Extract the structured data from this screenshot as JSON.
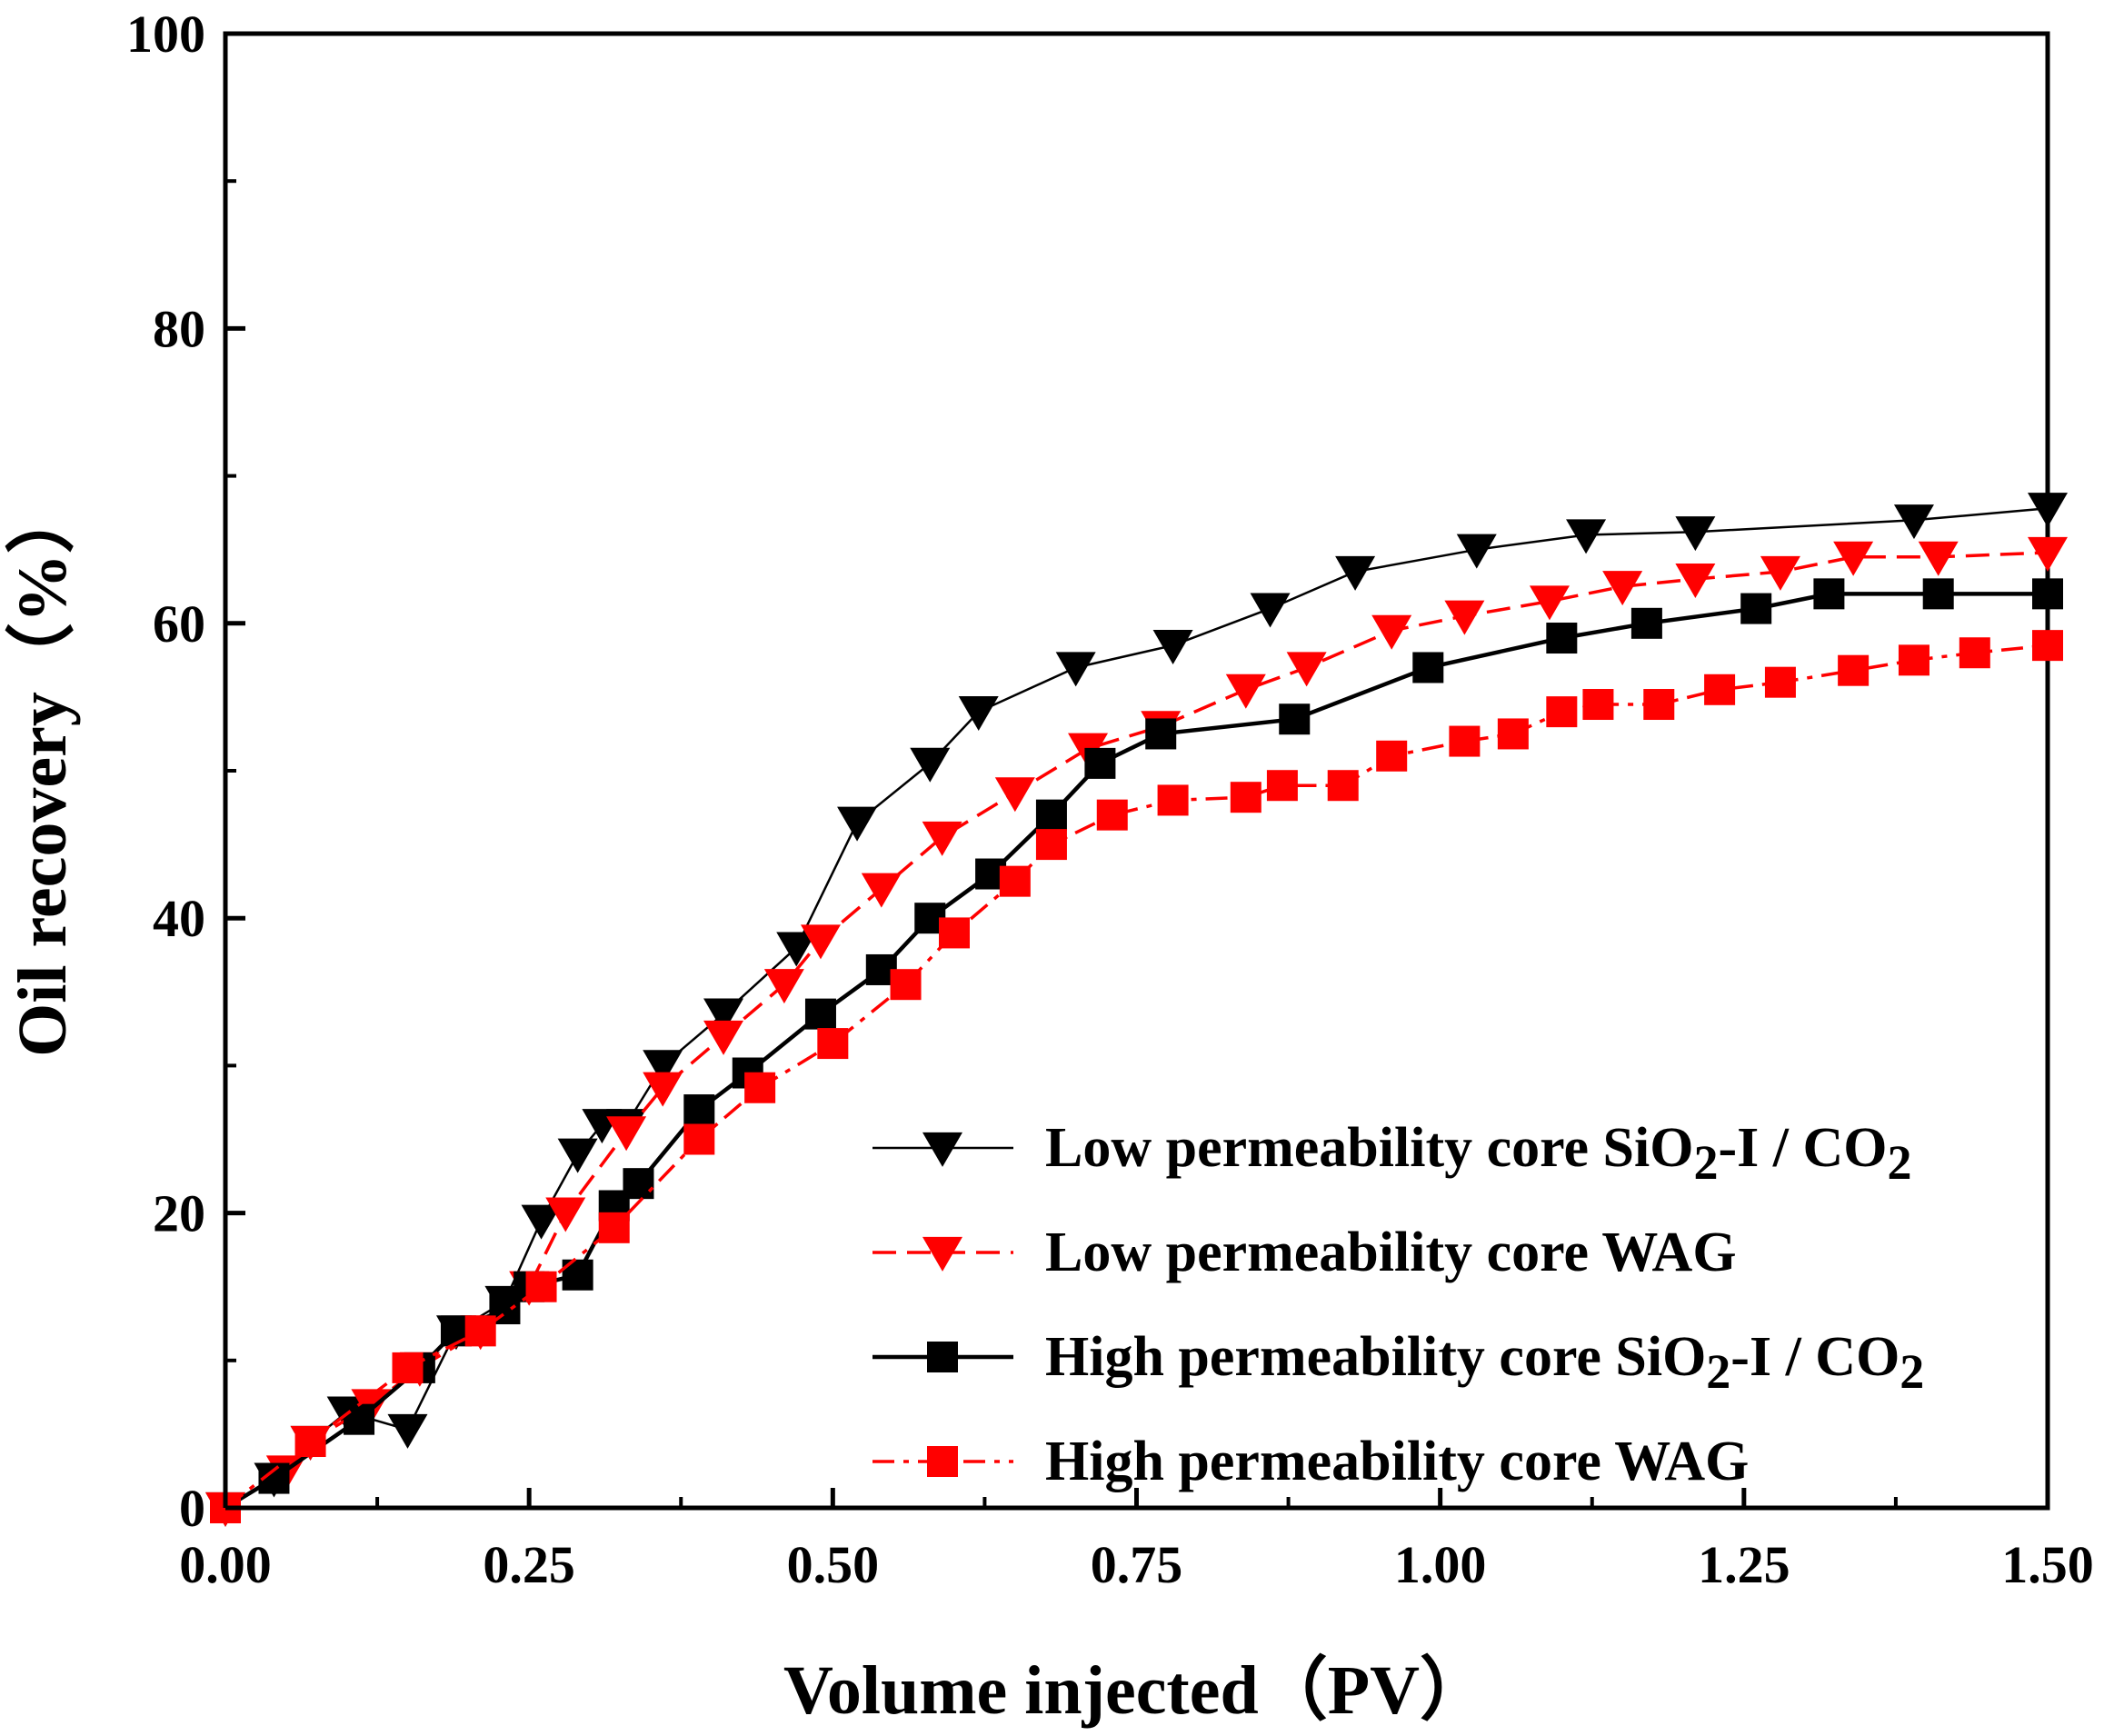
{
  "chart_data": {
    "type": "line",
    "xlabel": "Volume injected（PV）",
    "ylabel": "Oil recovery（%）",
    "xlim": [
      0,
      1.5
    ],
    "ylim": [
      0,
      100
    ],
    "x_ticks": [
      "0.00",
      "0.25",
      "0.50",
      "0.75",
      "1.00",
      "1.25",
      "1.50"
    ],
    "y_ticks": [
      "0",
      "20",
      "40",
      "60",
      "80",
      "100"
    ],
    "grid": false,
    "legend_position": "lower-right",
    "series": [
      {
        "name": "Low permeability core SiO2-I / CO2",
        "legend_parts": [
          "Low permeability core SiO",
          "2",
          "-I / CO",
          "2"
        ],
        "color": "#000000",
        "marker": "triangle-down",
        "line_style": "solid-thin",
        "x": [
          0,
          0.04,
          0.07,
          0.1,
          0.15,
          0.19,
          0.23,
          0.26,
          0.29,
          0.31,
          0.33,
          0.36,
          0.41,
          0.47,
          0.52,
          0.58,
          0.62,
          0.7,
          0.78,
          0.86,
          0.93,
          1.03,
          1.12,
          1.21,
          1.39,
          1.5
        ],
        "y": [
          0,
          2,
          4.5,
          6.5,
          5.3,
          12,
          14,
          19.5,
          24,
          26,
          26,
          30,
          33.5,
          38,
          46.5,
          50.5,
          54,
          57,
          58.5,
          61,
          63.5,
          65,
          66,
          66.2,
          67,
          67.8
        ]
      },
      {
        "name": "Low permeability core WAG",
        "legend_parts": [
          "Low permeability core WAG"
        ],
        "color": "#ff0000",
        "marker": "triangle-down",
        "line_style": "dash",
        "x": [
          0,
          0.05,
          0.07,
          0.12,
          0.16,
          0.21,
          0.25,
          0.28,
          0.33,
          0.36,
          0.41,
          0.46,
          0.49,
          0.54,
          0.59,
          0.65,
          0.71,
          0.77,
          0.84,
          0.89,
          0.96,
          1.02,
          1.09,
          1.15,
          1.21,
          1.28,
          1.34,
          1.41,
          1.5
        ],
        "y": [
          0,
          2.5,
          4.5,
          7,
          9.5,
          12,
          15,
          20,
          25.5,
          28.5,
          32,
          35.5,
          38.5,
          42,
          45.5,
          48.5,
          51.5,
          53,
          55.5,
          57,
          59.5,
          60.5,
          61.5,
          62.5,
          63,
          63.5,
          64.5,
          64.5,
          64.8
        ]
      },
      {
        "name": "High permeability core SiO2-I / CO2",
        "legend_parts": [
          "High permeability core SiO",
          "2",
          "-I / CO",
          "2"
        ],
        "color": "#000000",
        "marker": "square",
        "line_style": "solid",
        "x": [
          0,
          0.04,
          0.11,
          0.16,
          0.19,
          0.23,
          0.25,
          0.29,
          0.32,
          0.34,
          0.39,
          0.43,
          0.49,
          0.54,
          0.58,
          0.63,
          0.68,
          0.72,
          0.77,
          0.88,
          0.99,
          1.1,
          1.17,
          1.26,
          1.32,
          1.41,
          1.5
        ],
        "y": [
          0,
          2,
          6,
          9.5,
          12,
          13.5,
          15,
          15.8,
          20.5,
          22,
          27,
          29.5,
          33.5,
          36.5,
          40,
          43,
          47,
          50.5,
          52.5,
          53.5,
          57,
          59,
          60,
          61,
          62,
          62,
          62
        ]
      },
      {
        "name": "High permeability core WAG",
        "legend_parts": [
          "High permeability core WAG"
        ],
        "color": "#ff0000",
        "marker": "square",
        "line_style": "dashdot",
        "x": [
          0,
          0.07,
          0.15,
          0.21,
          0.26,
          0.32,
          0.39,
          0.44,
          0.5,
          0.56,
          0.6,
          0.65,
          0.68,
          0.73,
          0.78,
          0.84,
          0.87,
          0.92,
          0.96,
          1.02,
          1.06,
          1.1,
          1.13,
          1.18,
          1.23,
          1.28,
          1.34,
          1.39,
          1.44,
          1.5
        ],
        "y": [
          0,
          4.5,
          9.5,
          12,
          15,
          19,
          25,
          28.5,
          31.5,
          35.5,
          39,
          42.5,
          45,
          47,
          48,
          48.2,
          49,
          49,
          51,
          52,
          52.5,
          54,
          54.5,
          54.5,
          55.5,
          56,
          56.8,
          57.5,
          58,
          58.5
        ]
      }
    ]
  }
}
